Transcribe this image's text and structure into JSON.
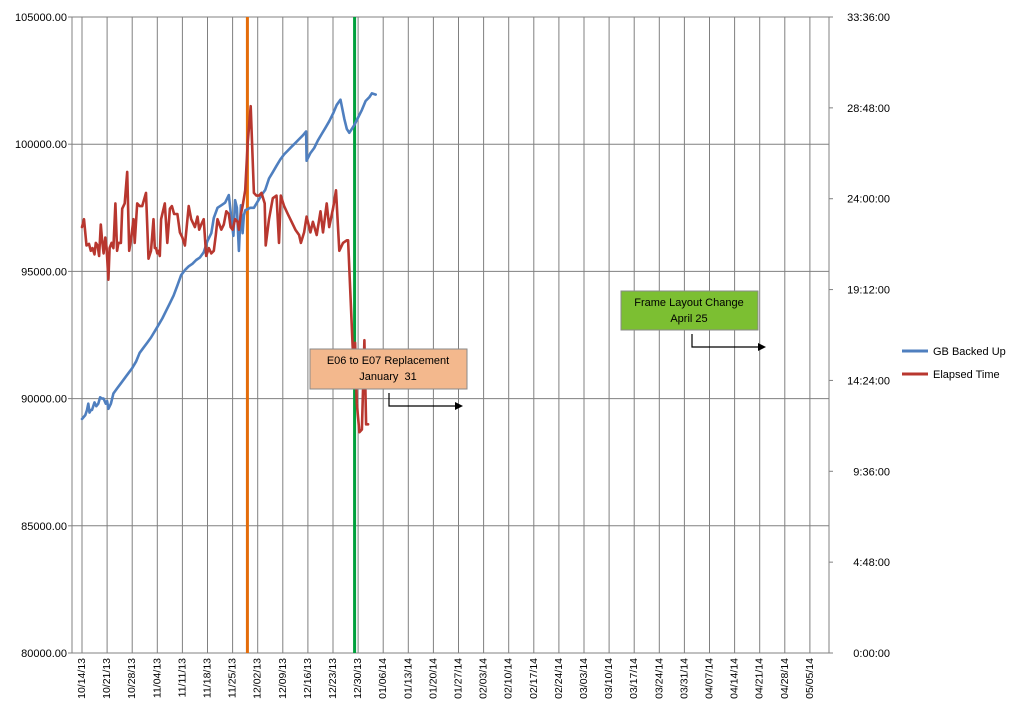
{
  "chart_data": {
    "type": "line",
    "title": "",
    "xlabel": "",
    "ylabel": "",
    "legend_position": "right",
    "grid": true,
    "y_left": {
      "min": 80000,
      "max": 105000,
      "step": 5000,
      "tick_labels": [
        "80000.00",
        "85000.00",
        "90000.00",
        "95000.00",
        "100000.00",
        "105000.00"
      ]
    },
    "y_right": {
      "min_seconds": 0,
      "max_seconds": 120960,
      "step_seconds": 17280,
      "tick_labels": [
        "0:00:00",
        "4:48:00",
        "9:36:00",
        "14:24:00",
        "19:12:00",
        "24:00:00",
        "28:48:00",
        "33:36:00"
      ]
    },
    "x_tick_labels": [
      "10/14/13",
      "10/21/13",
      "10/28/13",
      "11/04/13",
      "11/11/13",
      "11/18/13",
      "11/25/13",
      "12/02/13",
      "12/09/13",
      "12/16/13",
      "12/23/13",
      "12/30/13",
      "01/06/14",
      "01/13/14",
      "01/20/14",
      "01/27/14",
      "02/03/14",
      "02/10/14",
      "02/17/14",
      "02/24/14",
      "03/03/14",
      "03/10/14",
      "03/17/14",
      "03/24/14",
      "03/31/14",
      "04/07/14",
      "04/14/14",
      "04/21/14",
      "04/28/14",
      "05/05/14"
    ],
    "series": [
      {
        "name": "GB Backed Up",
        "color": "#4f7fbf",
        "axis": "left",
        "points": [
          [
            0,
            89200
          ],
          [
            0.13,
            89350
          ],
          [
            0.2,
            89550
          ],
          [
            0.25,
            89800
          ],
          [
            0.3,
            89450
          ],
          [
            0.35,
            89550
          ],
          [
            0.4,
            89550
          ],
          [
            0.5,
            89850
          ],
          [
            0.57,
            89700
          ],
          [
            0.65,
            89800
          ],
          [
            0.72,
            90050
          ],
          [
            0.8,
            90000
          ],
          [
            0.86,
            90000
          ],
          [
            0.95,
            89800
          ],
          [
            1.0,
            89900
          ],
          [
            1.05,
            89600
          ],
          [
            1.15,
            89800
          ],
          [
            1.25,
            90200
          ],
          [
            1.4,
            90400
          ],
          [
            1.55,
            90600
          ],
          [
            1.7,
            90800
          ],
          [
            1.85,
            91000
          ],
          [
            2.0,
            91200
          ],
          [
            2.15,
            91450
          ],
          [
            2.3,
            91800
          ],
          [
            2.45,
            92000
          ],
          [
            2.6,
            92200
          ],
          [
            2.75,
            92400
          ],
          [
            2.9,
            92650
          ],
          [
            3.05,
            92900
          ],
          [
            3.2,
            93150
          ],
          [
            3.35,
            93450
          ],
          [
            3.5,
            93750
          ],
          [
            3.65,
            94050
          ],
          [
            3.8,
            94450
          ],
          [
            3.95,
            94850
          ],
          [
            4.1,
            95050
          ],
          [
            4.25,
            95200
          ],
          [
            4.4,
            95300
          ],
          [
            4.55,
            95450
          ],
          [
            4.7,
            95550
          ],
          [
            4.85,
            95750
          ],
          [
            5.0,
            96200
          ],
          [
            5.15,
            96500
          ],
          [
            5.25,
            97100
          ],
          [
            5.4,
            97500
          ],
          [
            5.55,
            97600
          ],
          [
            5.7,
            97700
          ],
          [
            5.85,
            98000
          ],
          [
            5.95,
            97100
          ],
          [
            6.03,
            96400
          ],
          [
            6.1,
            97800
          ],
          [
            6.17,
            97500
          ],
          [
            6.25,
            95800
          ],
          [
            6.33,
            97600
          ],
          [
            6.4,
            96500
          ],
          [
            6.45,
            97200
          ],
          [
            6.5,
            97400
          ],
          [
            6.7,
            97500
          ],
          [
            6.85,
            97500
          ],
          [
            7.0,
            97750
          ],
          [
            7.15,
            98000
          ],
          [
            7.3,
            98200
          ],
          [
            7.45,
            98650
          ],
          [
            7.6,
            98900
          ],
          [
            7.75,
            99150
          ],
          [
            7.9,
            99400
          ],
          [
            8.05,
            99600
          ],
          [
            8.2,
            99750
          ],
          [
            8.35,
            99900
          ],
          [
            8.5,
            100050
          ],
          [
            8.65,
            100200
          ],
          [
            8.8,
            100350
          ],
          [
            8.93,
            100500
          ],
          [
            8.95,
            99350
          ],
          [
            9.1,
            99650
          ],
          [
            9.25,
            99850
          ],
          [
            9.4,
            100150
          ],
          [
            9.55,
            100400
          ],
          [
            9.7,
            100650
          ],
          [
            9.85,
            100900
          ],
          [
            10.0,
            101200
          ],
          [
            10.15,
            101550
          ],
          [
            10.3,
            101750
          ],
          [
            10.45,
            101000
          ],
          [
            10.55,
            100600
          ],
          [
            10.65,
            100450
          ],
          [
            10.85,
            100750
          ],
          [
            11.0,
            101050
          ],
          [
            11.15,
            101350
          ],
          [
            11.3,
            101700
          ],
          [
            11.45,
            101850
          ],
          [
            11.55,
            102000
          ],
          [
            11.7,
            101950
          ]
        ]
      },
      {
        "name": "Elapsed Time",
        "color": "#b8372f",
        "axis": "right",
        "points": [
          [
            0,
            81000
          ],
          [
            0.08,
            82500
          ],
          [
            0.18,
            77500
          ],
          [
            0.28,
            77800
          ],
          [
            0.35,
            76500
          ],
          [
            0.42,
            77000
          ],
          [
            0.5,
            75800
          ],
          [
            0.55,
            78000
          ],
          [
            0.62,
            77500
          ],
          [
            0.68,
            75500
          ],
          [
            0.75,
            81500
          ],
          [
            0.8,
            78500
          ],
          [
            0.86,
            76000
          ],
          [
            0.93,
            79000
          ],
          [
            0.98,
            77000
          ],
          [
            1.05,
            71000
          ],
          [
            1.1,
            77000
          ],
          [
            1.18,
            78000
          ],
          [
            1.25,
            77000
          ],
          [
            1.33,
            85500
          ],
          [
            1.4,
            76500
          ],
          [
            1.45,
            78000
          ],
          [
            1.55,
            78000
          ],
          [
            1.6,
            84500
          ],
          [
            1.7,
            85500
          ],
          [
            1.8,
            91500
          ],
          [
            1.88,
            76500
          ],
          [
            1.95,
            78500
          ],
          [
            2.05,
            82500
          ],
          [
            2.1,
            78000
          ],
          [
            2.2,
            85500
          ],
          [
            2.3,
            85000
          ],
          [
            2.4,
            85000
          ],
          [
            2.55,
            87500
          ],
          [
            2.65,
            75000
          ],
          [
            2.75,
            76500
          ],
          [
            2.85,
            82500
          ],
          [
            2.9,
            77000
          ],
          [
            2.95,
            77000
          ],
          [
            3.0,
            76000
          ],
          [
            3.05,
            76500
          ],
          [
            3.1,
            75500
          ],
          [
            3.15,
            82500
          ],
          [
            3.3,
            85500
          ],
          [
            3.4,
            78000
          ],
          [
            3.5,
            84500
          ],
          [
            3.58,
            85000
          ],
          [
            3.67,
            83500
          ],
          [
            3.8,
            83500
          ],
          [
            3.9,
            80000
          ],
          [
            4.0,
            79000
          ],
          [
            4.1,
            77500
          ],
          [
            4.25,
            85000
          ],
          [
            4.35,
            82500
          ],
          [
            4.5,
            81000
          ],
          [
            4.6,
            83000
          ],
          [
            4.67,
            80500
          ],
          [
            4.75,
            81500
          ],
          [
            4.85,
            82500
          ],
          [
            4.95,
            75500
          ],
          [
            5.05,
            77000
          ],
          [
            5.15,
            76000
          ],
          [
            5.25,
            76500
          ],
          [
            5.33,
            79500
          ],
          [
            5.4,
            82500
          ],
          [
            5.55,
            80500
          ],
          [
            5.65,
            81500
          ],
          [
            5.75,
            84000
          ],
          [
            5.85,
            83500
          ],
          [
            5.92,
            81000
          ],
          [
            6.0,
            80500
          ],
          [
            6.1,
            82500
          ],
          [
            6.2,
            82000
          ],
          [
            6.25,
            80500
          ],
          [
            6.33,
            83500
          ],
          [
            6.4,
            85000
          ],
          [
            6.5,
            88000
          ],
          [
            6.6,
            97000
          ],
          [
            6.72,
            104000
          ],
          [
            6.85,
            87500
          ],
          [
            6.95,
            87000
          ],
          [
            7.05,
            87000
          ],
          [
            7.15,
            87500
          ],
          [
            7.28,
            85500
          ],
          [
            7.32,
            77500
          ],
          [
            7.45,
            82500
          ],
          [
            7.6,
            86500
          ],
          [
            7.75,
            87000
          ],
          [
            7.85,
            78000
          ],
          [
            7.92,
            87000
          ],
          [
            8.05,
            85000
          ],
          [
            8.2,
            83500
          ],
          [
            8.35,
            82000
          ],
          [
            8.5,
            80500
          ],
          [
            8.65,
            79500
          ],
          [
            8.72,
            78000
          ],
          [
            8.85,
            80000
          ],
          [
            8.95,
            83000
          ],
          [
            9.1,
            80000
          ],
          [
            9.2,
            82000
          ],
          [
            9.35,
            79500
          ],
          [
            9.5,
            84000
          ],
          [
            9.6,
            80000
          ],
          [
            9.75,
            85500
          ],
          [
            9.85,
            81000
          ],
          [
            10.0,
            84500
          ],
          [
            10.12,
            88000
          ],
          [
            10.25,
            76500
          ],
          [
            10.4,
            78000
          ],
          [
            10.55,
            78500
          ],
          [
            10.6,
            78500
          ],
          [
            10.78,
            58500
          ],
          [
            10.8,
            57000
          ],
          [
            10.88,
            59000
          ],
          [
            10.95,
            47500
          ],
          [
            11.05,
            42000
          ],
          [
            11.15,
            42500
          ],
          [
            11.25,
            59500
          ],
          [
            11.32,
            43500
          ],
          [
            11.4,
            43500
          ]
        ]
      }
    ],
    "vertical_lines": [
      {
        "x": 6.59,
        "color": "#e46c0a"
      },
      {
        "x": 10.86,
        "color": "#00a03c"
      }
    ],
    "annotations": [
      {
        "lines": [
          "E06 to E07 Replacement",
          "January  31"
        ],
        "fill": "#f3b88d"
      },
      {
        "lines": [
          "Frame Layout Change",
          "April 25"
        ],
        "fill": "#7cbf32"
      }
    ]
  }
}
